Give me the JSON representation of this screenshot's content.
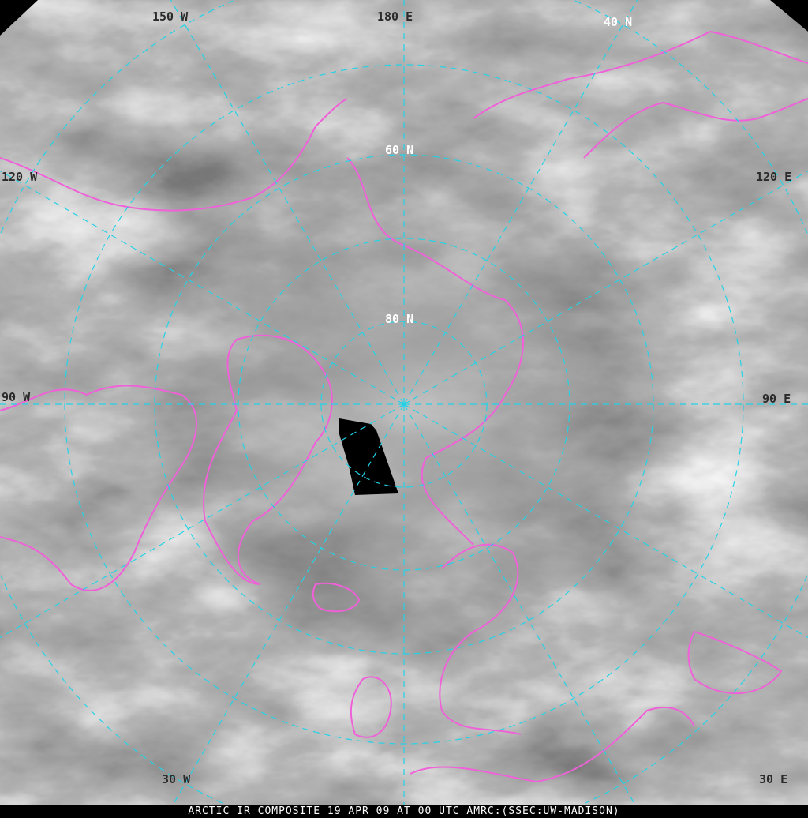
{
  "caption": "ARCTIC IR COMPOSITE 19 APR 09 AT 00 UTC AMRC:(SSEC:UW-MADISON)",
  "graticule_color": "#22d3e6",
  "coastline_color": "#f060d8",
  "labels": {
    "lon_150w": "150  W",
    "lon_180e": "180  E",
    "lat_40n": "40  N",
    "lat_60n": "60  N",
    "lat_80n": "80  N",
    "lon_120e": "120  E",
    "lon_90w": "90  W",
    "lon_90e": "90  E",
    "lon_120w": "120  W",
    "lon_30w": "30  W",
    "lon_30e": "30  E"
  }
}
